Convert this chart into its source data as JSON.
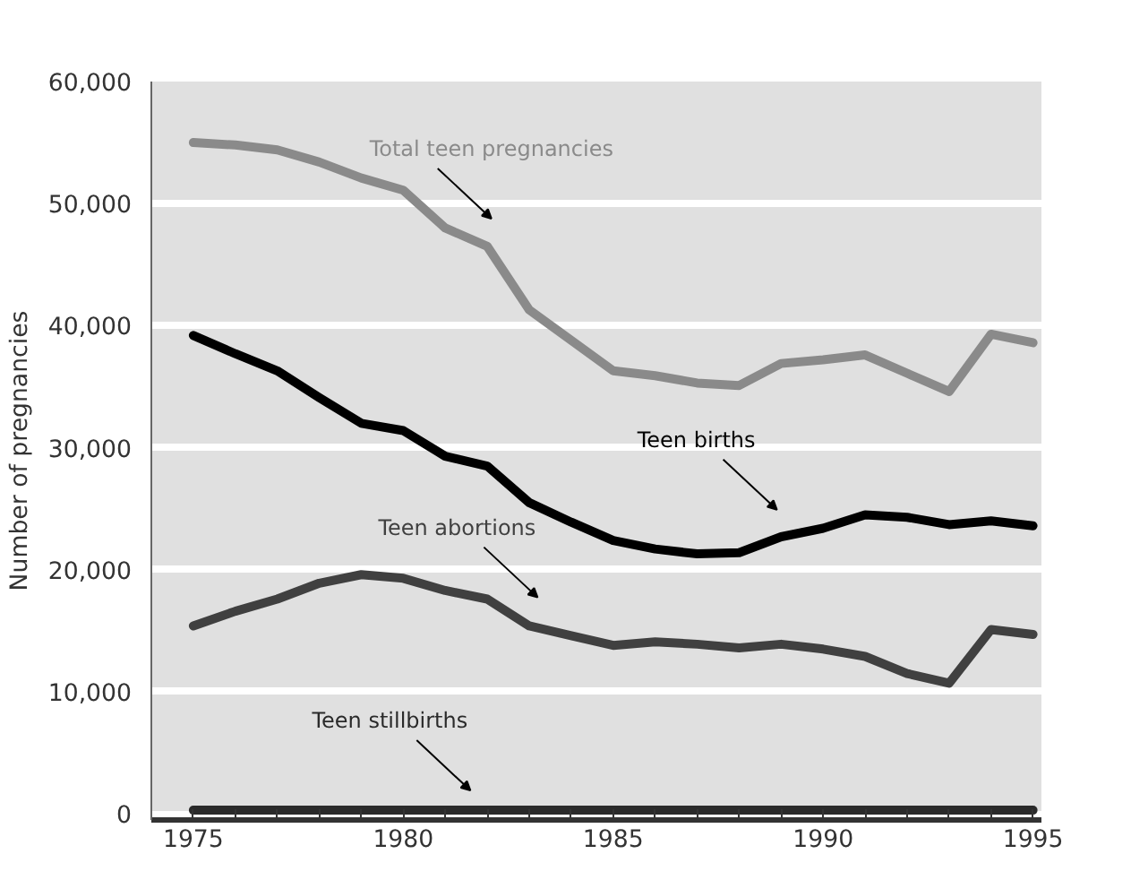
{
  "chart_data": {
    "type": "line",
    "ylabel": "Number of pregnancies",
    "x": [
      1975,
      1976,
      1977,
      1978,
      1979,
      1980,
      1981,
      1982,
      1983,
      1984,
      1985,
      1986,
      1987,
      1988,
      1989,
      1990,
      1991,
      1992,
      1993,
      1994,
      1995
    ],
    "series": [
      {
        "name": "Total teen pregnancies",
        "color": "#8a8a8a",
        "values": [
          55000,
          54800,
          54400,
          53400,
          52100,
          51100,
          48000,
          46500,
          41300,
          38800,
          36300,
          35900,
          35300,
          35100,
          36900,
          37200,
          37600,
          36100,
          34600,
          39300,
          38600
        ]
      },
      {
        "name": "Teen births",
        "color": "#000000",
        "values": [
          39200,
          37700,
          36300,
          34100,
          32000,
          31400,
          29300,
          28500,
          25500,
          23900,
          22400,
          21700,
          21300,
          21400,
          22700,
          23400,
          24500,
          24300,
          23700,
          24000,
          23600
        ]
      },
      {
        "name": "Teen abortions",
        "color": "#404040",
        "values": [
          15400,
          16600,
          17600,
          18900,
          19600,
          19300,
          18300,
          17600,
          15400,
          14600,
          13800,
          14100,
          13900,
          13600,
          13900,
          13500,
          12900,
          11500,
          10700,
          15100,
          14700
        ]
      },
      {
        "name": "Teen stillbirths",
        "color": "#2a2a2a",
        "values": [
          300,
          300,
          300,
          300,
          300,
          300,
          300,
          300,
          300,
          300,
          300,
          300,
          300,
          300,
          300,
          300,
          300,
          300,
          300,
          300,
          300
        ]
      }
    ],
    "xlim": [
      1974,
      1995.2
    ],
    "xticks": [
      1975,
      1980,
      1985,
      1990,
      1995
    ],
    "ylim": [
      -500,
      60000
    ],
    "yticks": [
      {
        "value": 0,
        "label": "0"
      },
      {
        "value": 10000,
        "label": "10,000"
      },
      {
        "value": 20000,
        "label": "20,000"
      },
      {
        "value": 30000,
        "label": "30,000"
      },
      {
        "value": 40000,
        "label": "40,000"
      },
      {
        "value": 50000,
        "label": "50,000"
      },
      {
        "value": 60000,
        "label": "60,000"
      }
    ],
    "grid": "y",
    "legend": false,
    "marker": "none",
    "line_style": "solid"
  }
}
